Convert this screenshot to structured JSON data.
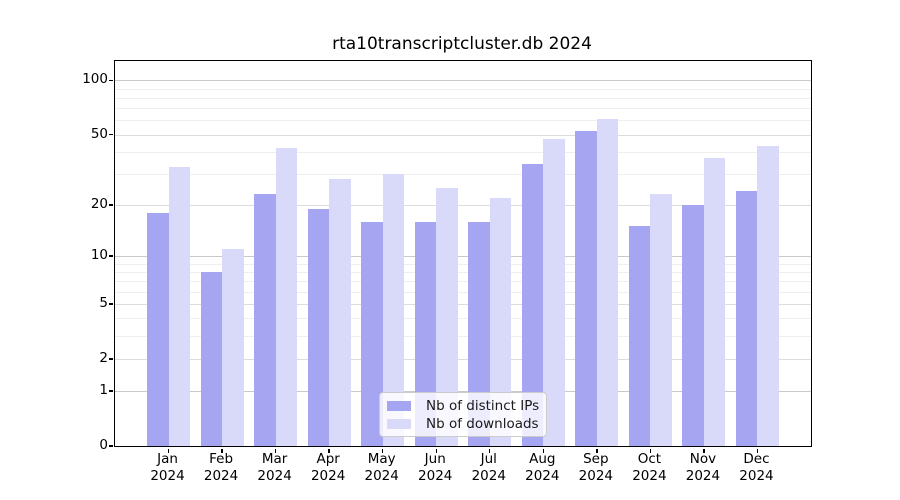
{
  "title": "rta10transcriptcluster.db 2024",
  "chart_data": {
    "type": "bar",
    "title": "rta10transcriptcluster.db 2024",
    "year": "2024",
    "categories": [
      "Jan",
      "Feb",
      "Mar",
      "Apr",
      "May",
      "Jun",
      "Jul",
      "Aug",
      "Sep",
      "Oct",
      "Nov",
      "Dec"
    ],
    "series": [
      {
        "name": "Nb of distinct IPs",
        "color": "#a5a5f2",
        "values": [
          18,
          8,
          23,
          19,
          16,
          16,
          16,
          34,
          52,
          15,
          20,
          24
        ]
      },
      {
        "name": "Nb of downloads",
        "color": "#d9d9f9",
        "values": [
          33,
          11,
          42,
          28,
          30,
          25,
          22,
          47,
          61,
          23,
          37,
          43
        ]
      }
    ],
    "xlabel": "",
    "ylabel": "",
    "yscale": "log1p",
    "ylim": [
      0,
      128
    ],
    "yticks": [
      0,
      1,
      2,
      5,
      10,
      20,
      50,
      100
    ],
    "minor_gridlines": [
      3,
      4,
      6,
      7,
      8,
      9,
      30,
      40,
      60,
      70,
      80,
      90
    ],
    "grid": "on",
    "legend_position": "lower center"
  }
}
